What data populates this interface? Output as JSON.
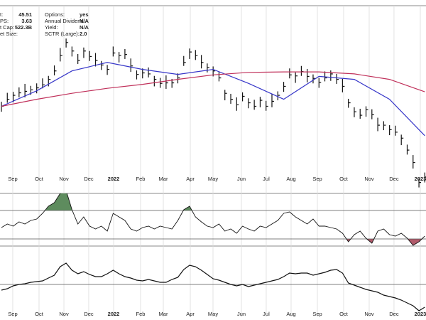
{
  "chart_data": [
    {
      "type": "ohlc",
      "info": [
        {
          "label": "t:",
          "value": "45.51"
        },
        {
          "label": "PS:",
          "value": "3.63"
        },
        {
          "label": "t Cap:",
          "value": "522.3B"
        },
        {
          "label": "et Size:"
        },
        {
          "label": "Options:",
          "value": "yes"
        },
        {
          "label": "Annual Dividend:",
          "value": "N/A"
        },
        {
          "label": "Yield:",
          "value": "N/A"
        },
        {
          "label": "SCTR (Large):",
          "value": "2.0"
        }
      ],
      "xlim": [
        -0.24,
        72.2
      ],
      "ylim": [
        100,
        477
      ],
      "xticks": [
        {
          "value": 1.93,
          "label": "Sep"
        },
        {
          "value": 6.4,
          "label": "Oct"
        },
        {
          "value": 10.63,
          "label": "Nov"
        },
        {
          "value": 14.85,
          "label": "Dec"
        },
        {
          "value": 19.08,
          "label": "2022"
        },
        {
          "value": 23.66,
          "label": "Feb"
        },
        {
          "value": 27.53,
          "label": "Mar"
        },
        {
          "value": 32.12,
          "label": "Apr"
        },
        {
          "value": 35.98,
          "label": "May"
        },
        {
          "value": 40.81,
          "label": "Jun"
        },
        {
          "value": 45.03,
          "label": "Jul"
        },
        {
          "value": 49.26,
          "label": "Aug"
        },
        {
          "value": 53.73,
          "label": "Sep"
        },
        {
          "value": 58.19,
          "label": "Oct"
        },
        {
          "value": 62.54,
          "label": "Nov"
        },
        {
          "value": 66.76,
          "label": "Dec"
        },
        {
          "value": 71.23,
          "label": "2023"
        }
      ],
      "color": "#111111",
      "high": [
        284,
        302,
        304,
        313,
        320,
        316,
        321,
        331,
        336,
        357,
        392,
        411,
        395,
        380,
        393,
        386,
        382,
        366,
        358,
        395,
        384,
        390,
        371,
        347,
        351,
        353,
        336,
        332,
        337,
        330,
        341,
        376,
        391,
        388,
        378,
        361,
        355,
        345,
        308,
        300,
        293,
        303,
        291,
        288,
        294,
        286,
        300,
        305,
        324,
        351,
        343,
        356,
        350,
        339,
        332,
        345,
        347,
        340,
        330,
        290,
        273,
        270,
        275,
        269,
        252,
        245,
        237,
        236,
        218,
        198,
        177,
        130,
        142
      ],
      "low": [
        264,
        282,
        283,
        293,
        293,
        298,
        301,
        311,
        315,
        337,
        365,
        393,
        375,
        360,
        372,
        366,
        355,
        348,
        338,
        375,
        363,
        370,
        344,
        329,
        331,
        333,
        315,
        312,
        310,
        312,
        321,
        356,
        370,
        368,
        351,
        343,
        335,
        325,
        287,
        280,
        266,
        285,
        271,
        268,
        273,
        266,
        273,
        287,
        304,
        331,
        322,
        336,
        323,
        321,
        312,
        325,
        326,
        320,
        303,
        272,
        253,
        250,
        254,
        249,
        225,
        227,
        217,
        216,
        197,
        178,
        150,
        112,
        122
      ],
      "close": [
        275,
        289,
        297,
        302,
        305,
        308,
        312,
        318,
        329,
        346,
        377,
        403,
        386,
        367,
        386,
        375,
        367,
        358,
        349,
        382,
        377,
        379,
        356,
        339,
        342,
        340,
        329,
        321,
        322,
        322,
        332,
        363,
        384,
        377,
        363,
        353,
        346,
        332,
        301,
        289,
        278,
        295,
        282,
        275,
        287,
        275,
        285,
        297,
        315,
        338,
        336,
        345,
        335,
        331,
        323,
        332,
        340,
        329,
        315,
        282,
        264,
        257,
        268,
        258,
        237,
        237,
        228,
        223,
        211,
        187,
        162,
        122,
        133
      ],
      "overlays": [
        {
          "color": "#3535c8",
          "x": [
            0,
            6,
            12,
            18,
            24,
            30,
            36,
            42,
            48,
            54,
            60,
            66,
            72
          ],
          "values": [
            275,
            306,
            346,
            363,
            349,
            339,
            349,
            321,
            289,
            335,
            329,
            289,
            216
          ]
        },
        {
          "color": "#c0305a",
          "x": [
            0,
            6,
            12,
            18,
            24,
            30,
            36,
            42,
            48,
            54,
            60,
            66,
            72
          ],
          "values": [
            275,
            289,
            301,
            311,
            319,
            329,
            338,
            343,
            344,
            344,
            340,
            329,
            304
          ]
        }
      ]
    },
    {
      "type": "oscillator",
      "ylim": [
        20,
        94
      ],
      "levels": [
        70,
        30
      ],
      "color": "#111111",
      "upper_fill": "#5e8c5e",
      "lower_fill": "#b05a6a",
      "values": [
        46,
        51,
        48,
        54,
        51,
        56,
        58,
        66,
        76,
        81,
        94,
        98,
        71,
        51,
        61,
        48,
        44,
        48,
        41,
        66,
        61,
        56,
        44,
        41,
        46,
        48,
        44,
        48,
        46,
        44,
        56,
        71,
        76,
        61,
        54,
        48,
        46,
        51,
        41,
        44,
        38,
        48,
        44,
        41,
        48,
        46,
        51,
        56,
        66,
        68,
        61,
        56,
        51,
        58,
        48,
        48,
        46,
        44,
        38,
        26,
        36,
        41,
        31,
        24,
        41,
        44,
        36,
        34,
        38,
        31,
        21,
        26,
        34
      ]
    },
    {
      "type": "line",
      "ylim": [
        0,
        100
      ],
      "level": 46,
      "color": "#111111",
      "xticks": [
        {
          "value": 1.93,
          "label": "Sep"
        },
        {
          "value": 6.4,
          "label": "Oct"
        },
        {
          "value": 10.63,
          "label": "Nov"
        },
        {
          "value": 14.85,
          "label": "Dec"
        },
        {
          "value": 19.08,
          "label": "2022"
        },
        {
          "value": 23.66,
          "label": "Feb"
        },
        {
          "value": 27.53,
          "label": "Mar"
        },
        {
          "value": 32.12,
          "label": "Apr"
        },
        {
          "value": 35.98,
          "label": "May"
        },
        {
          "value": 40.81,
          "label": "Jun"
        },
        {
          "value": 45.03,
          "label": "Jul"
        },
        {
          "value": 49.26,
          "label": "Aug"
        },
        {
          "value": 53.73,
          "label": "Sep"
        },
        {
          "value": 58.19,
          "label": "Oct"
        },
        {
          "value": 62.54,
          "label": "Nov"
        },
        {
          "value": 66.76,
          "label": "Dec"
        },
        {
          "value": 71.23,
          "label": "2023"
        }
      ],
      "values": [
        38,
        40,
        44,
        46,
        47,
        49,
        50,
        51,
        55,
        59,
        71,
        76,
        66,
        61,
        64,
        60,
        57,
        57,
        61,
        66,
        61,
        57,
        55,
        52,
        51,
        53,
        51,
        49,
        49,
        53,
        56,
        67,
        73,
        71,
        66,
        60,
        54,
        52,
        49,
        46,
        44,
        46,
        43,
        45,
        47,
        49,
        51,
        53,
        57,
        62,
        61,
        62,
        62,
        59,
        61,
        63,
        66,
        67,
        62,
        48,
        45,
        42,
        39,
        37,
        35,
        31,
        29,
        27,
        24,
        20,
        16,
        9,
        14
      ]
    }
  ]
}
